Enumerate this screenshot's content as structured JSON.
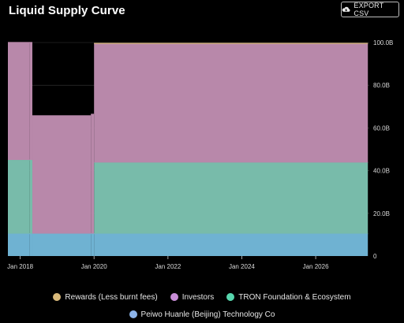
{
  "header": {
    "title": "Liquid Supply Curve",
    "export_label": "EXPORT CSV",
    "export_icon": "cloud-download-icon"
  },
  "colors": {
    "background": "#000000",
    "rewards": "#d9b97a",
    "investors": "#b888aa",
    "tron": "#78bbaa",
    "peiwo": "#6fb2d2",
    "gridline": "#3a3a3a"
  },
  "chart_data": {
    "type": "area",
    "stacked": true,
    "title": "Liquid Supply Curve",
    "xlabel": "",
    "ylabel": "",
    "x_ticks": [
      "Jan 2018",
      "Jan 2020",
      "Jan 2022",
      "Jan 2024",
      "Jan 2026"
    ],
    "y_ticks": [
      "0",
      "20.0B",
      "40.0B",
      "60.0B",
      "80.0B",
      "100.0B"
    ],
    "ylim": [
      0,
      100
    ],
    "y_unit": "B",
    "grid": true,
    "legend_position": "bottom",
    "x": [
      "2017-09",
      "2018-04",
      "2018-05",
      "2019-12",
      "2020-01",
      "2027-06"
    ],
    "series": [
      {
        "name": "Peiwo Huanle (Beijing) Technology Co",
        "color": "#6fb2d2",
        "values": [
          10.5,
          10.5,
          10.5,
          10.5,
          10.5,
          10.5
        ]
      },
      {
        "name": "TRON Foundation & Ecosystem",
        "color": "#78bbaa",
        "values": [
          34.5,
          34.5,
          0,
          0,
          33.3,
          33.3
        ]
      },
      {
        "name": "Investors",
        "color": "#b888aa",
        "values": [
          55.0,
          55.0,
          55.2,
          55.9,
          55.7,
          55.7
        ]
      },
      {
        "name": "Rewards (Less burnt fees)",
        "color": "#d9b97a",
        "values": [
          0,
          0,
          0,
          0,
          0.1,
          0.8
        ]
      }
    ]
  },
  "legend": {
    "row1": [
      {
        "label": "Rewards (Less burnt fees)",
        "color": "#d9b97a"
      },
      {
        "label": "Investors",
        "color": "#c78cd6"
      },
      {
        "label": "TRON Foundation & Ecosystem",
        "color": "#57d6ad"
      }
    ],
    "row2": [
      {
        "label": "Peiwo Huanle (Beijing) Technology Co",
        "color": "#8cb4ea"
      }
    ]
  }
}
